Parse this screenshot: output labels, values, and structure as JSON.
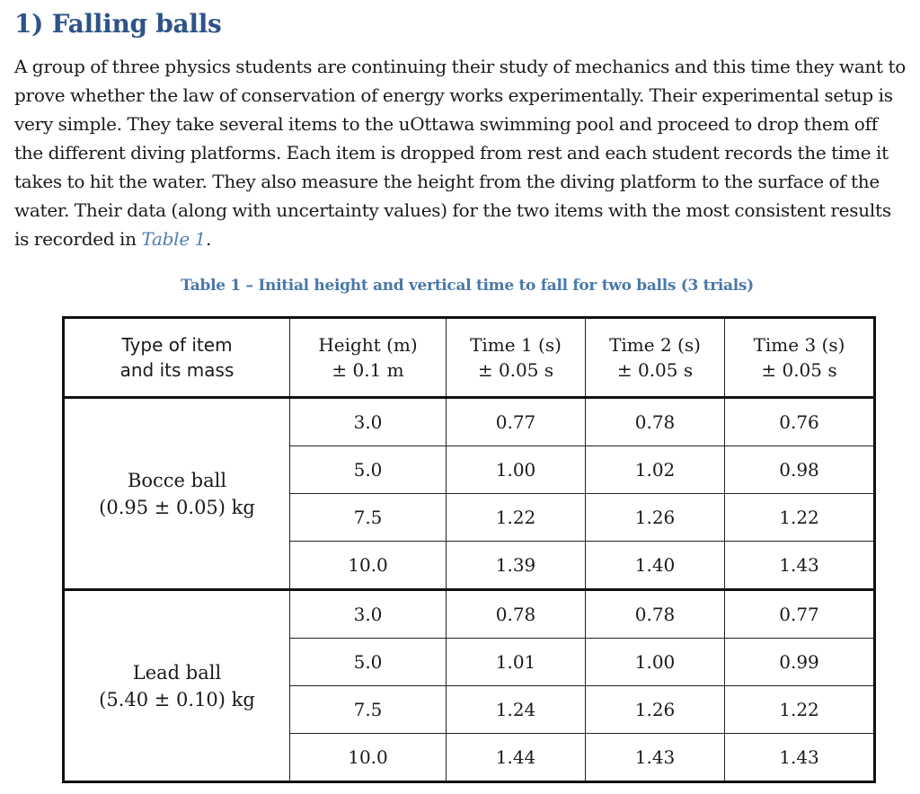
{
  "heading": "1) Falling balls",
  "paragraph": {
    "text": "A group of three physics students are continuing their study of mechanics and this time they want to prove whether the law of conservation of energy works experimentally. Their experimental setup is very simple. They take several items to the uOttawa swimming pool and proceed to drop them off the different diving platforms. Each item is dropped from rest and each student records the time it takes to hit the water. They also measure the height from the diving platform to the surface of the water. Their data (along with uncertainty values) for the two items with the most consistent results is recorded in ",
    "ref": "Table 1",
    "end": "."
  },
  "caption": "Table 1 – Initial height and vertical time to fall for two balls (3 trials)",
  "table": {
    "headers": [
      {
        "line1": "Type of item",
        "line2": "and its mass"
      },
      {
        "line1": "Height (m)",
        "line2": "± 0.1 m"
      },
      {
        "line1": "Time 1 (s)",
        "line2": "± 0.05 s"
      },
      {
        "line1": "Time 2 (s)",
        "line2": "± 0.05 s"
      },
      {
        "line1": "Time 3 (s)",
        "line2": "± 0.05 s"
      }
    ],
    "groups": [
      {
        "name": "Bocce ball",
        "mass": "(0.95 ± 0.05) kg",
        "rows": [
          [
            "3.0",
            "0.77",
            "0.78",
            "0.76"
          ],
          [
            "5.0",
            "1.00",
            "1.02",
            "0.98"
          ],
          [
            "7.5",
            "1.22",
            "1.26",
            "1.22"
          ],
          [
            "10.0",
            "1.39",
            "1.40",
            "1.43"
          ]
        ]
      },
      {
        "name": "Lead ball",
        "mass": "(5.40 ± 0.10) kg",
        "rows": [
          [
            "3.0",
            "0.78",
            "0.78",
            "0.77"
          ],
          [
            "5.0",
            "1.01",
            "1.00",
            "0.99"
          ],
          [
            "7.5",
            "1.24",
            "1.26",
            "1.22"
          ],
          [
            "10.0",
            "1.44",
            "1.43",
            "1.43"
          ]
        ]
      }
    ]
  }
}
